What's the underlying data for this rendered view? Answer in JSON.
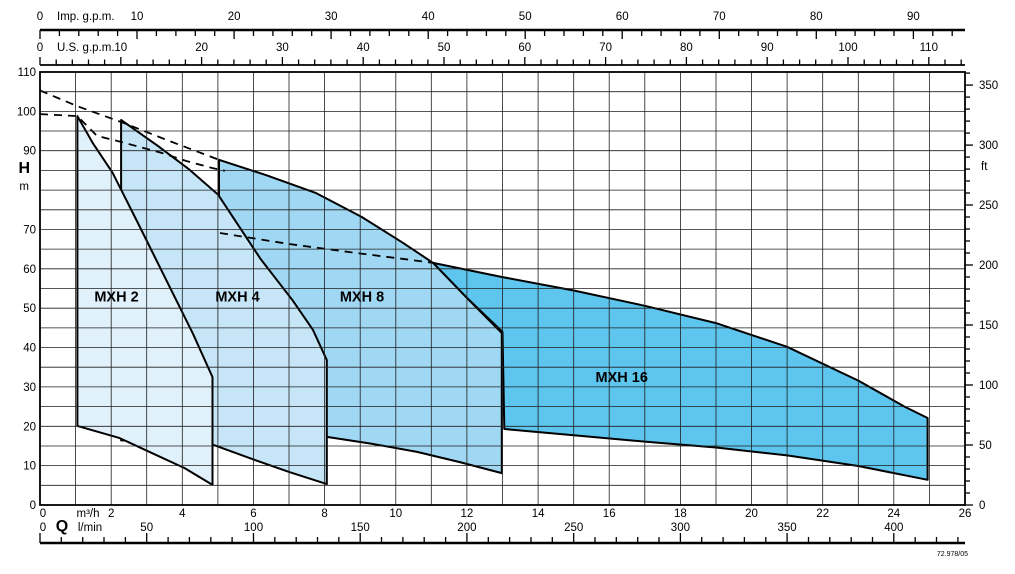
{
  "chart_data": {
    "type": "area",
    "description": "Pump performance chart: operating ranges (head H versus flow Q) for MXH series pumps",
    "x_range_m3h": [
      0,
      26
    ],
    "y_range_m": [
      0,
      110
    ],
    "region_label_color": "#1A2B40",
    "grid": {
      "x_step_m3h": 1,
      "y_step_m": 5
    },
    "axes": {
      "imp_gpm": {
        "label": "Imp. g.p.m.",
        "per_m3h": 3.6662,
        "majors": [
          0,
          10,
          20,
          30,
          40,
          50,
          60,
          70,
          80,
          90
        ],
        "minor_step": 2,
        "max": 95
      },
      "us_gpm": {
        "label": "U.S. g.p.m.",
        "per_m3h": 4.4029,
        "majors": [
          0,
          10,
          20,
          30,
          40,
          50,
          60,
          70,
          80,
          90,
          100,
          110
        ],
        "minor_step": 2,
        "max": 114.4
      },
      "h_m": {
        "label": "H",
        "unit": "m",
        "labels": [
          110,
          100,
          90,
          70,
          60,
          50,
          40,
          30,
          20,
          10,
          0
        ]
      },
      "ft": {
        "label": "ft",
        "per_m": 3.2808,
        "majors": [
          350,
          300,
          250,
          200,
          150,
          100,
          50,
          0
        ],
        "minor_step": 10,
        "max": 361
      },
      "m3h": {
        "label": "m³/h",
        "zero": "0",
        "majors": [
          2,
          4,
          6,
          8,
          10,
          12,
          14,
          16,
          18,
          20,
          22,
          24,
          26
        ]
      },
      "lmin": {
        "label": "l/min",
        "q_label": "Q",
        "zero": "0",
        "per_m3h": 16.6667,
        "majors": [
          50,
          100,
          150,
          200,
          250,
          300,
          350,
          400
        ],
        "minor_step": 10,
        "max": 433
      }
    },
    "regions": [
      {
        "name": "MXH 2",
        "fill": "#E0F1FB",
        "label_q": 2.15,
        "label_h": 53,
        "points": [
          [
            1.05,
            98.8
          ],
          [
            1.48,
            92
          ],
          [
            2.04,
            84.4
          ],
          [
            2.71,
            72.4
          ],
          [
            3.2,
            63.5
          ],
          [
            3.75,
            53.5
          ],
          [
            4.3,
            43.5
          ],
          [
            4.85,
            32.5
          ],
          [
            4.85,
            5.1
          ],
          [
            4.06,
            9.4
          ],
          [
            3.1,
            13.4
          ],
          [
            2.24,
            17
          ],
          [
            1.05,
            20.1
          ]
        ]
      },
      {
        "name": "MXH 4",
        "fill": "#C6E6F8",
        "label_q": 5.55,
        "label_h": 53,
        "points": [
          [
            2.28,
            97.8
          ],
          [
            3.3,
            91.3
          ],
          [
            4.2,
            85.2
          ],
          [
            5.01,
            78.8
          ],
          [
            6.2,
            62.5
          ],
          [
            7.1,
            52
          ],
          [
            7.67,
            44.5
          ],
          [
            8.06,
            36.8
          ],
          [
            8.06,
            5.3
          ],
          [
            7.0,
            8.4
          ],
          [
            5.9,
            11.9
          ],
          [
            4.9,
            15.2
          ],
          [
            3.5,
            16.0
          ],
          [
            2.28,
            16.4
          ]
        ]
      },
      {
        "name": "MXH 8",
        "fill": "#A0D8F3",
        "label_q": 9.05,
        "label_h": 53,
        "points": [
          [
            5.03,
            87.7
          ],
          [
            6.35,
            83.8
          ],
          [
            7.74,
            79.3
          ],
          [
            9.04,
            73.2
          ],
          [
            10.2,
            66.6
          ],
          [
            11.05,
            61.5
          ],
          [
            12.0,
            52.6
          ],
          [
            12.98,
            43.7
          ],
          [
            12.98,
            8.1
          ],
          [
            11.8,
            10.9
          ],
          [
            10.6,
            13.5
          ],
          [
            9.3,
            15.6
          ],
          [
            8.06,
            17.3
          ],
          [
            6.5,
            19.3
          ],
          [
            5.03,
            21.0
          ]
        ]
      },
      {
        "name": "MXH 16",
        "fill": "#5EC5EE",
        "label_q": 16.35,
        "label_h": 32.5,
        "points": [
          [
            11.05,
            61.5
          ],
          [
            13.0,
            57.9
          ],
          [
            15.0,
            54.5
          ],
          [
            17.0,
            50.6
          ],
          [
            19.0,
            46.2
          ],
          [
            21.0,
            40.2
          ],
          [
            23.0,
            31.6
          ],
          [
            24.3,
            25.0
          ],
          [
            24.95,
            22.1
          ],
          [
            24.95,
            6.4
          ],
          [
            23.0,
            9.9
          ],
          [
            21.0,
            12.6
          ],
          [
            19.0,
            14.6
          ],
          [
            17.0,
            16.1
          ],
          [
            15.0,
            17.7
          ],
          [
            13.05,
            19.3
          ],
          [
            13.0,
            44.0
          ],
          [
            12.0,
            52.6
          ]
        ]
      }
    ],
    "dashed_curves": [
      {
        "name": "max-curve-envelope-upper",
        "points": [
          [
            0,
            105.3
          ],
          [
            1.05,
            101.3
          ],
          [
            2.28,
            97.3
          ],
          [
            3.6,
            92.6
          ],
          [
            5.03,
            87.7
          ]
        ]
      },
      {
        "name": "max-curve-envelope-lower",
        "points": [
          [
            0,
            99.3
          ],
          [
            1.05,
            98.8
          ],
          [
            1.6,
            93.8
          ],
          [
            2.3,
            92.2
          ],
          [
            3.44,
            89.4
          ],
          [
            4.11,
            87.4
          ],
          [
            4.84,
            85.6
          ],
          [
            5.2,
            84.9
          ]
        ]
      },
      {
        "name": "mxh16-max-curve-extension",
        "points": [
          [
            5.06,
            69.1
          ],
          [
            7.0,
            66.3
          ],
          [
            9.0,
            63.9
          ],
          [
            10.4,
            62.3
          ],
          [
            11.05,
            61.5
          ]
        ]
      }
    ],
    "footer_code": "72.978/05"
  }
}
